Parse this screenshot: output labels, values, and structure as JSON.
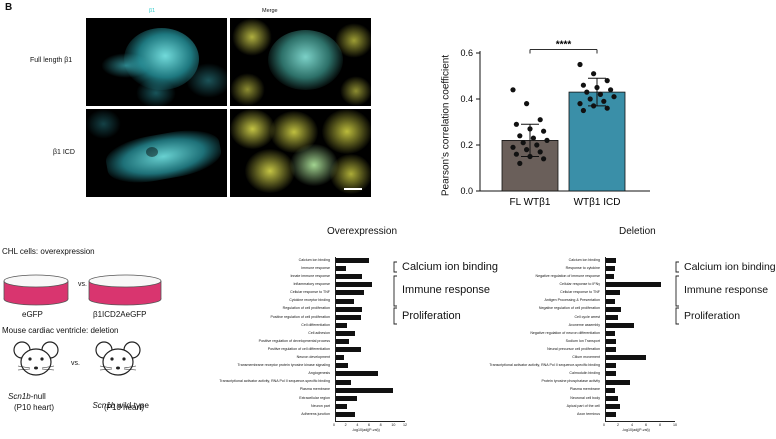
{
  "panel_a": {
    "letter": "B",
    "col_headers": [
      "β1",
      "Merge"
    ],
    "row_labels": [
      "Full length β1",
      "β1 ICD"
    ]
  },
  "panel_b": {
    "chart_data": {
      "type": "bar",
      "categories": [
        "FL WTβ1",
        "WTβ1 ICD"
      ],
      "values": [
        0.22,
        0.43
      ],
      "error": [
        0.07,
        0.06
      ],
      "points": [
        [
          0.44,
          0.38,
          0.31,
          0.29,
          0.27,
          0.26,
          0.24,
          0.23,
          0.22,
          0.21,
          0.2,
          0.19,
          0.18,
          0.17,
          0.16,
          0.15,
          0.14,
          0.12
        ],
        [
          0.55,
          0.51,
          0.48,
          0.46,
          0.45,
          0.44,
          0.43,
          0.42,
          0.41,
          0.4,
          0.39,
          0.38,
          0.37,
          0.36,
          0.35
        ]
      ],
      "colors": [
        "#6a5f5a",
        "#3a8fa8"
      ],
      "ylabel": "Pearson's correlation coefficient",
      "yticks": [
        "0.0",
        "0.2",
        "0.4",
        "0.6"
      ],
      "ylim": [
        0,
        0.6
      ],
      "significance": "****"
    }
  },
  "panel_c": {
    "setup": {
      "title1": "CHL cells: overexpression",
      "dish_left": "eGFP",
      "vs1": "vs.",
      "dish_right": "β1ICD2AeGFP",
      "title2": "Mouse cardiac ventricle: deletion",
      "mouse_left_name_italic": "Scn1b",
      "mouse_left_name_rest": "-null",
      "mouse_left_sub": "(P10 heart)",
      "vs2": "vs.",
      "mouse_right_name_italic": "Scn1b",
      "mouse_right_name_rest": " wild-type",
      "mouse_right_sub": "(P10 heart)"
    },
    "overexpression": {
      "chart_data": {
        "type": "bar",
        "title": "Overexpression",
        "categories": [
          "Calcium ion binding",
          "Immune response",
          "Innate immune response",
          "Inflammatory response",
          "Cellular response to TNF",
          "Cytokine receptor binding",
          "Regulation of cell proliferation",
          "Positive regulation of cell proliferation",
          "Cell differentiation",
          "Cell adhesion",
          "Positive regulation of developmental process",
          "Positive regulation of cell differentiation",
          "Neuron development",
          "Transmembrane receptor protein tyrosine kinase signaling",
          "Angiogenesis",
          "Transcriptional activator activity, RNA Pol II sequence-specific binding",
          "Plasma membrane",
          "Extracellular region",
          "Neuron part",
          "Adherens junction"
        ],
        "values": [
          5.8,
          1.8,
          4.6,
          6.3,
          4.9,
          3.2,
          4.6,
          4.5,
          2.1,
          3.5,
          2.4,
          4.5,
          1.5,
          2.3,
          7.3,
          2.8,
          10.0,
          3.8,
          2.0,
          3.5
        ],
        "xlabel": "-log10(adj(P-val))",
        "xticks": [
          "0",
          "2",
          "4",
          "6",
          "8",
          "10",
          "12"
        ],
        "xlim": [
          0,
          12
        ]
      }
    },
    "deletion": {
      "chart_data": {
        "type": "bar",
        "title": "Deletion",
        "categories": [
          "Calcium ion binding",
          "Response to cytokine",
          "Negative regulation of immune response",
          "Cellular response to IFNγ",
          "Cellular response to TNF",
          "Antigen Processing & Presentation",
          "Negative regulation of cell proliferation",
          "Cell cycle arrest",
          "Axoneme assembly",
          "Negative regulation of neuron differentiation",
          "Sodium Ion Transport",
          "Neural precursor cell proliferation",
          "Cilium movement",
          "Transcriptional activator activity, RNA Pol II sequence-specific binding",
          "Calmodulin binding",
          "Protein tyrosine phosphatase activity",
          "Plasma membrane",
          "Neuronal cell body",
          "Apical part of the cell",
          "Axon terminus"
        ],
        "values": [
          1.5,
          1.4,
          1.3,
          8.0,
          2.1,
          1.4,
          2.3,
          1.8,
          4.2,
          1.4,
          1.5,
          1.5,
          5.8,
          1.6,
          1.5,
          3.6,
          1.4,
          1.8,
          2.2,
          1.5
        ],
        "xlabel": "-log10(adj(P-val))",
        "xticks": [
          "0",
          "2",
          "4",
          "6",
          "8",
          "10"
        ],
        "xlim": [
          0,
          10
        ]
      }
    },
    "groups": [
      "Calcium ion binding",
      "Immune response",
      "Proliferation"
    ]
  }
}
